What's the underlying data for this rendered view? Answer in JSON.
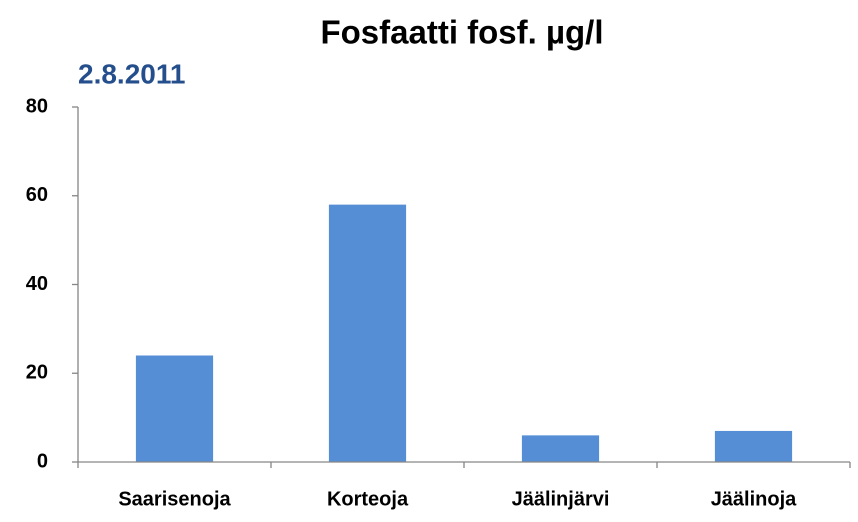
{
  "chart_data": {
    "type": "bar",
    "title": "Fosfaatti fosf. µg/l",
    "subtitle": "2.8.2011",
    "categories": [
      "Saarisenoja",
      "Korteoja",
      "Jäälinjärvi",
      "Jäälinoja"
    ],
    "values": [
      24,
      58,
      6,
      7
    ],
    "color": "#558ed5",
    "ylim": [
      0,
      80
    ],
    "yticks": [
      0,
      20,
      40,
      60,
      80
    ],
    "grid": false
  }
}
